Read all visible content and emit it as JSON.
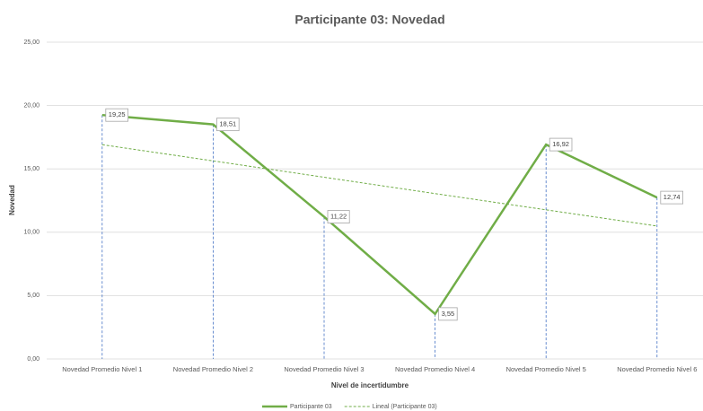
{
  "chart_data": {
    "type": "line",
    "title": "Participante 03: Novedad",
    "xlabel": "Nivel de incertidumbre",
    "ylabel": "Novedad",
    "categories": [
      "Novedad Promedio Nivel 1",
      "Novedad Promedio Nivel 2",
      "Novedad Promedio Nivel 3",
      "Novedad Promedio Nivel 4",
      "Novedad Promedio Nivel 5",
      "Novedad Promedio Nivel 6"
    ],
    "series": [
      {
        "name": "Participante 03",
        "color": "#70ad47",
        "values": [
          19.25,
          18.51,
          11.22,
          3.55,
          16.92,
          12.74
        ],
        "value_labels": [
          "19,25",
          "18,51",
          "11,22",
          "3,55",
          "16,92",
          "12,74"
        ]
      },
      {
        "name": "Lineal (Participante 03)",
        "color": "#70ad47",
        "dashed": true,
        "values": [
          16.91,
          15.63,
          14.34,
          13.05,
          11.77,
          10.49
        ]
      }
    ],
    "ylim": [
      0,
      25
    ],
    "yticks": [
      {
        "value": 0,
        "label": "0,00"
      },
      {
        "value": 5,
        "label": "5,00"
      },
      {
        "value": 10,
        "label": "10,00"
      },
      {
        "value": 15,
        "label": "15,00"
      },
      {
        "value": 20,
        "label": "20,00"
      },
      {
        "value": 25,
        "label": "25,00"
      }
    ],
    "grid": true,
    "drop_lines": true,
    "legend": "bottom"
  }
}
